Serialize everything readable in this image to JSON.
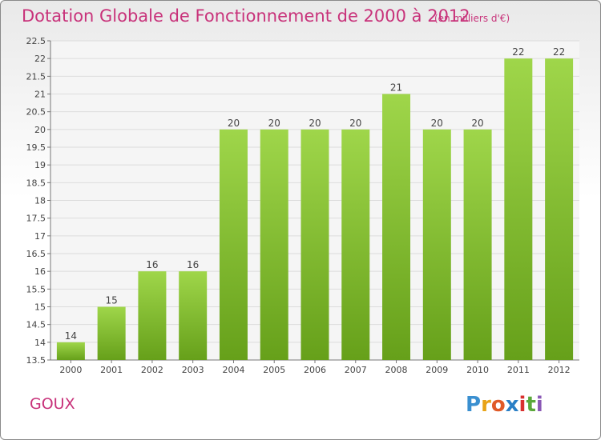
{
  "title": "Dotation Globale de Fonctionnement de 2000 à 2012",
  "subtitle": "(en milliers d'€)",
  "commune": "GOUX",
  "logo": {
    "letters": [
      "P",
      "r",
      "o",
      "x",
      "i",
      "t",
      "i"
    ],
    "colors": [
      "#3a8fd0",
      "#e8a317",
      "#e05a28",
      "#2a7fc6",
      "#d9302f",
      "#5aa83a",
      "#8a58b5"
    ]
  },
  "colors": {
    "bar": "#7fbf2a",
    "bar_light": "#9fd64a",
    "text": "#c8327a",
    "grid": "#dcdcdc"
  },
  "chart_data": {
    "type": "bar",
    "title": "Dotation Globale de Fonctionnement de 2000 à 2012",
    "subtitle": "(en milliers d'€)",
    "categories": [
      "2000",
      "2001",
      "2002",
      "2003",
      "2004",
      "2005",
      "2006",
      "2007",
      "2008",
      "2009",
      "2010",
      "2011",
      "2012"
    ],
    "values": [
      14,
      15,
      16,
      16,
      20,
      20,
      20,
      20,
      21,
      20,
      20,
      22,
      22
    ],
    "ylim": [
      13.5,
      22.5
    ],
    "yticks": [
      "13.5",
      "14",
      "14.5",
      "15",
      "15.5",
      "16",
      "16.5",
      "17",
      "17.5",
      "18",
      "18.5",
      "19",
      "19.5",
      "20",
      "20.5",
      "21",
      "21.5",
      "22",
      "22.5"
    ],
    "grid": true
  }
}
